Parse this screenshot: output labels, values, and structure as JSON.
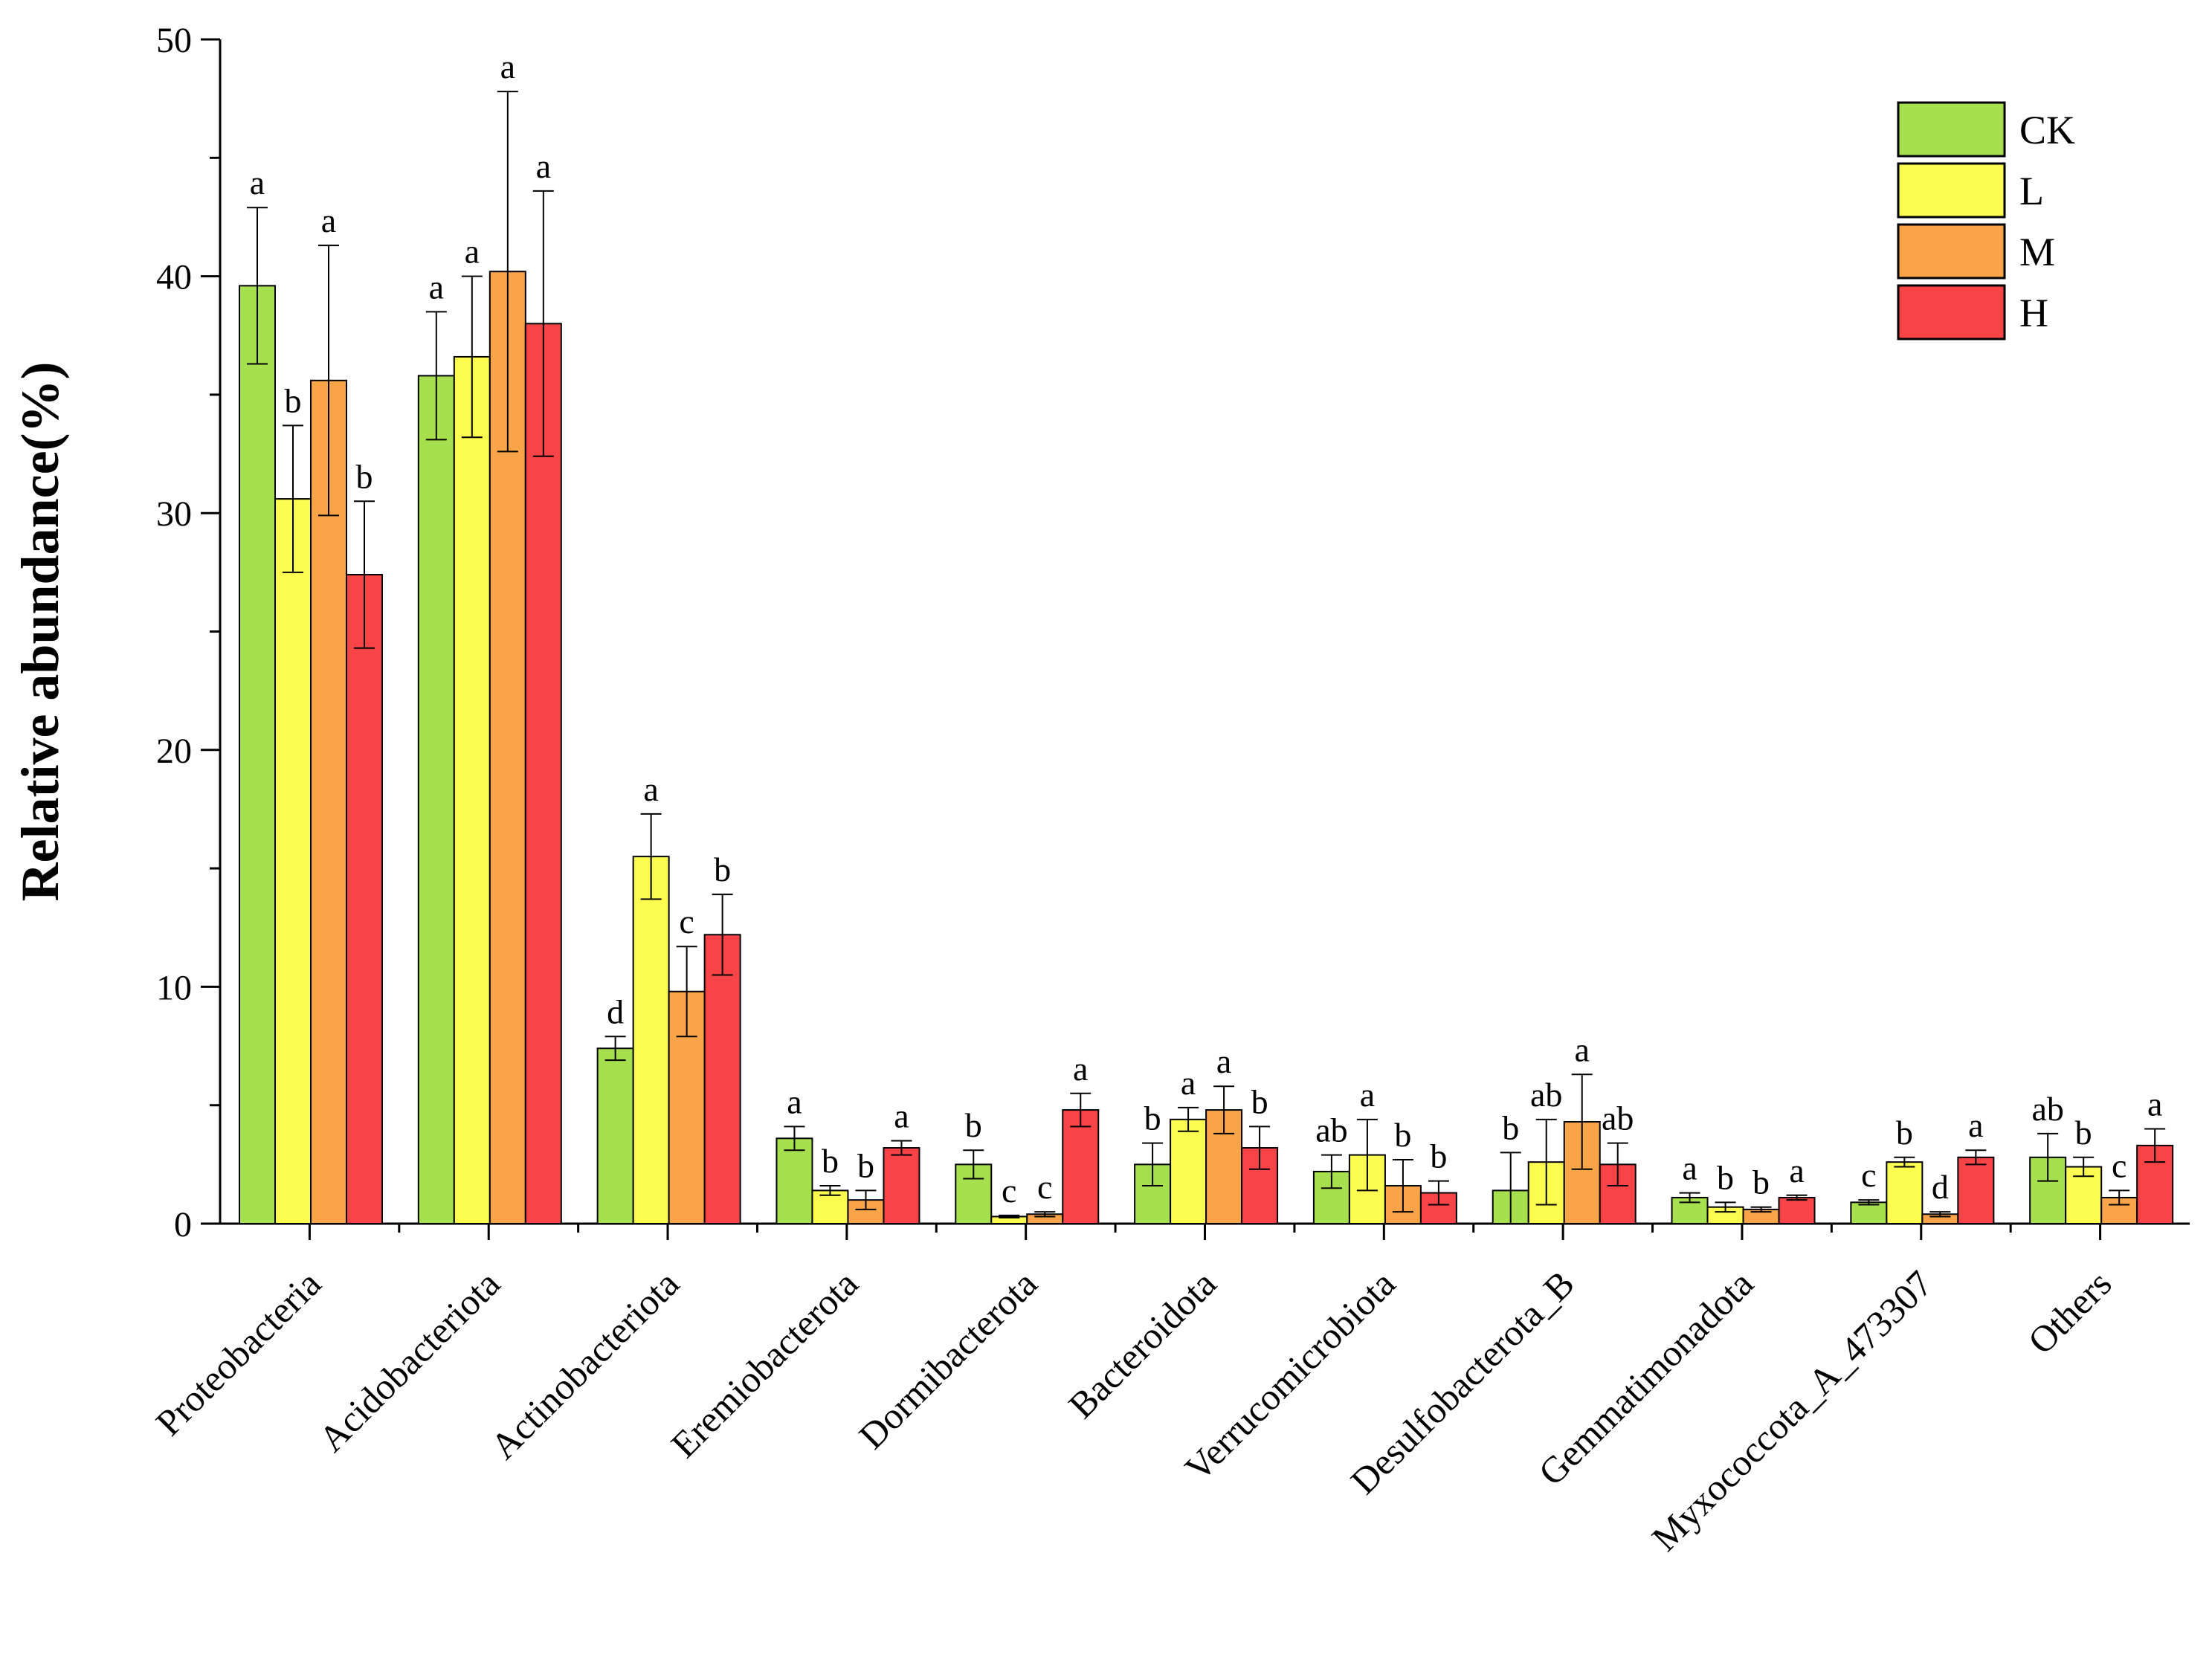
{
  "chart_data": {
    "type": "bar",
    "title": "",
    "xlabel": "",
    "ylabel": "Relative abundance(%)",
    "ylim": [
      0,
      50
    ],
    "yticks": [
      0,
      10,
      20,
      30,
      40,
      50
    ],
    "grid": false,
    "legend_position": "top-right",
    "categories": [
      "Proteobacteria",
      "Acidobacteriota",
      "Actinobacteriota",
      "Eremiobacterota",
      "Dormibacterota",
      "Bacteroidota",
      "Verrucomicrobiota",
      "Desulfobacterota_B",
      "Gemmatimonadota",
      "Myxococcota_A_473307",
      "Others"
    ],
    "series": [
      {
        "name": "CK",
        "color": "#A6E04F",
        "values": [
          39.6,
          35.8,
          7.4,
          3.6,
          2.5,
          2.5,
          2.2,
          1.4,
          1.1,
          0.9,
          2.8
        ],
        "errors": [
          3.3,
          2.7,
          0.5,
          0.5,
          0.6,
          0.9,
          0.7,
          1.6,
          0.2,
          0.1,
          1.0
        ],
        "letters": [
          "a",
          "a",
          "d",
          "a",
          "b",
          "b",
          "ab",
          "b",
          "a",
          "c",
          "ab"
        ]
      },
      {
        "name": "L",
        "color": "#FCFC50",
        "values": [
          30.6,
          36.6,
          15.5,
          1.4,
          0.3,
          4.4,
          2.9,
          2.6,
          0.7,
          2.6,
          2.4
        ],
        "errors": [
          3.1,
          3.4,
          1.8,
          0.2,
          0.05,
          0.5,
          1.5,
          1.8,
          0.2,
          0.2,
          0.4
        ],
        "letters": [
          "b",
          "a",
          "a",
          "b",
          "c",
          "a",
          "a",
          "ab",
          "b",
          "b",
          "b"
        ]
      },
      {
        "name": "M",
        "color": "#F9A449",
        "values": [
          35.6,
          40.2,
          9.8,
          1.0,
          0.4,
          4.8,
          1.6,
          4.3,
          0.6,
          0.4,
          1.1
        ],
        "errors": [
          5.7,
          7.6,
          1.9,
          0.4,
          0.1,
          1.0,
          1.1,
          2.0,
          0.1,
          0.1,
          0.3
        ],
        "letters": [
          "a",
          "a",
          "c",
          "b",
          "c",
          "a",
          "b",
          "a",
          "b",
          "d",
          "c"
        ]
      },
      {
        "name": "H",
        "color": "#F84447",
        "values": [
          27.4,
          38.0,
          12.2,
          3.2,
          4.8,
          3.2,
          1.3,
          2.5,
          1.1,
          2.8,
          3.3
        ],
        "errors": [
          3.1,
          5.6,
          1.7,
          0.3,
          0.7,
          0.9,
          0.5,
          0.9,
          0.1,
          0.3,
          0.7
        ],
        "letters": [
          "b",
          "a",
          "b",
          "a",
          "a",
          "b",
          "b",
          "ab",
          "a",
          "a",
          "a"
        ]
      }
    ]
  }
}
